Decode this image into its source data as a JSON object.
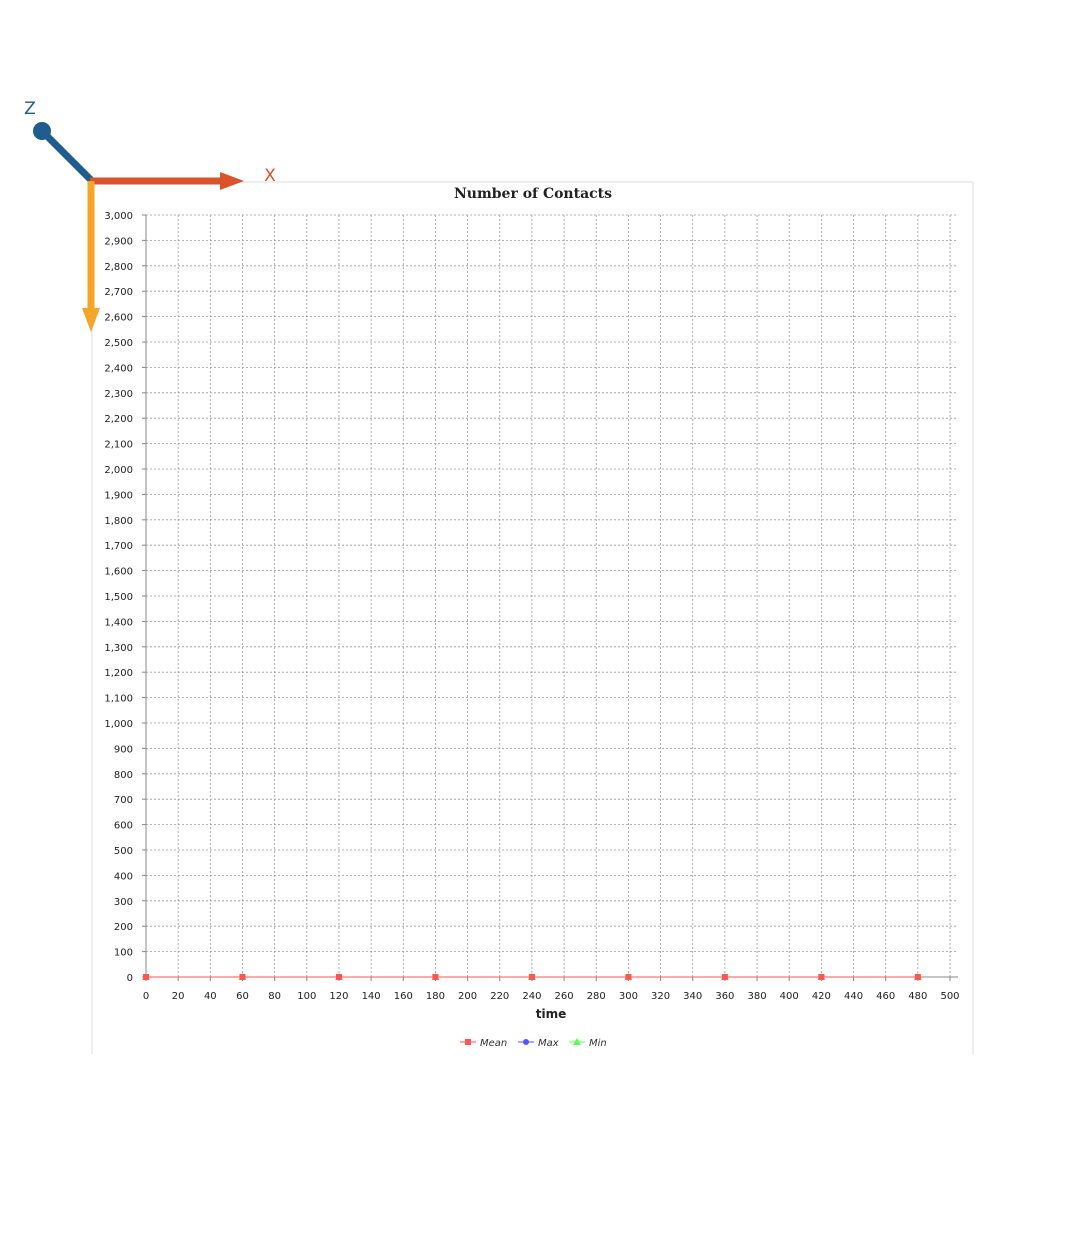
{
  "axes_gizmo": {
    "x_label": "X",
    "z_label": "Z",
    "x_color": "#d9532b",
    "y_color": "#f4a62a",
    "z_color": "#1f5d8f"
  },
  "chart_data": {
    "type": "line",
    "title": "Number of Contacts",
    "xlabel": "time",
    "ylabel": "",
    "xlim": [
      0,
      500
    ],
    "ylim": [
      0,
      3000
    ],
    "x_ticks": [
      0,
      20,
      40,
      60,
      80,
      100,
      120,
      140,
      160,
      180,
      200,
      220,
      240,
      260,
      280,
      300,
      320,
      340,
      360,
      380,
      400,
      420,
      440,
      460,
      480,
      500
    ],
    "y_ticks": [
      0,
      100,
      200,
      300,
      400,
      500,
      600,
      700,
      800,
      900,
      1000,
      1100,
      1200,
      1300,
      1400,
      1500,
      1600,
      1700,
      1800,
      1900,
      2000,
      2100,
      2200,
      2300,
      2400,
      2500,
      2600,
      2700,
      2800,
      2900,
      3000
    ],
    "x_tick_labels": [
      "0",
      "20",
      "40",
      "60",
      "80",
      "100",
      "120",
      "140",
      "160",
      "180",
      "200",
      "220",
      "240",
      "260",
      "280",
      "300",
      "320",
      "340",
      "360",
      "380",
      "400",
      "420",
      "440",
      "460",
      "480",
      "500"
    ],
    "y_tick_labels": [
      "0",
      "100",
      "200",
      "300",
      "400",
      "500",
      "600",
      "700",
      "800",
      "900",
      "1,000",
      "1,100",
      "1,200",
      "1,300",
      "1,400",
      "1,500",
      "1,600",
      "1,700",
      "1,800",
      "1,900",
      "2,000",
      "2,100",
      "2,200",
      "2,300",
      "2,400",
      "2,500",
      "2,600",
      "2,700",
      "2,800",
      "2,900",
      "3,000"
    ],
    "grid": true,
    "legend_position": "bottom-center",
    "x": [
      0,
      60,
      120,
      180,
      240,
      300,
      360,
      420,
      480
    ],
    "series": [
      {
        "name": "Mean",
        "color": "#ff5555",
        "marker": "square",
        "values": [
          0,
          0,
          0,
          0,
          0,
          0,
          0,
          0,
          0
        ]
      },
      {
        "name": "Max",
        "color": "#5555ff",
        "marker": "circle",
        "values": [
          0,
          0,
          0,
          0,
          0,
          0,
          0,
          0,
          0
        ]
      },
      {
        "name": "Min",
        "color": "#55ff55",
        "marker": "triangle",
        "values": [
          0,
          0,
          0,
          0,
          0,
          0,
          0,
          0,
          0
        ]
      }
    ]
  }
}
